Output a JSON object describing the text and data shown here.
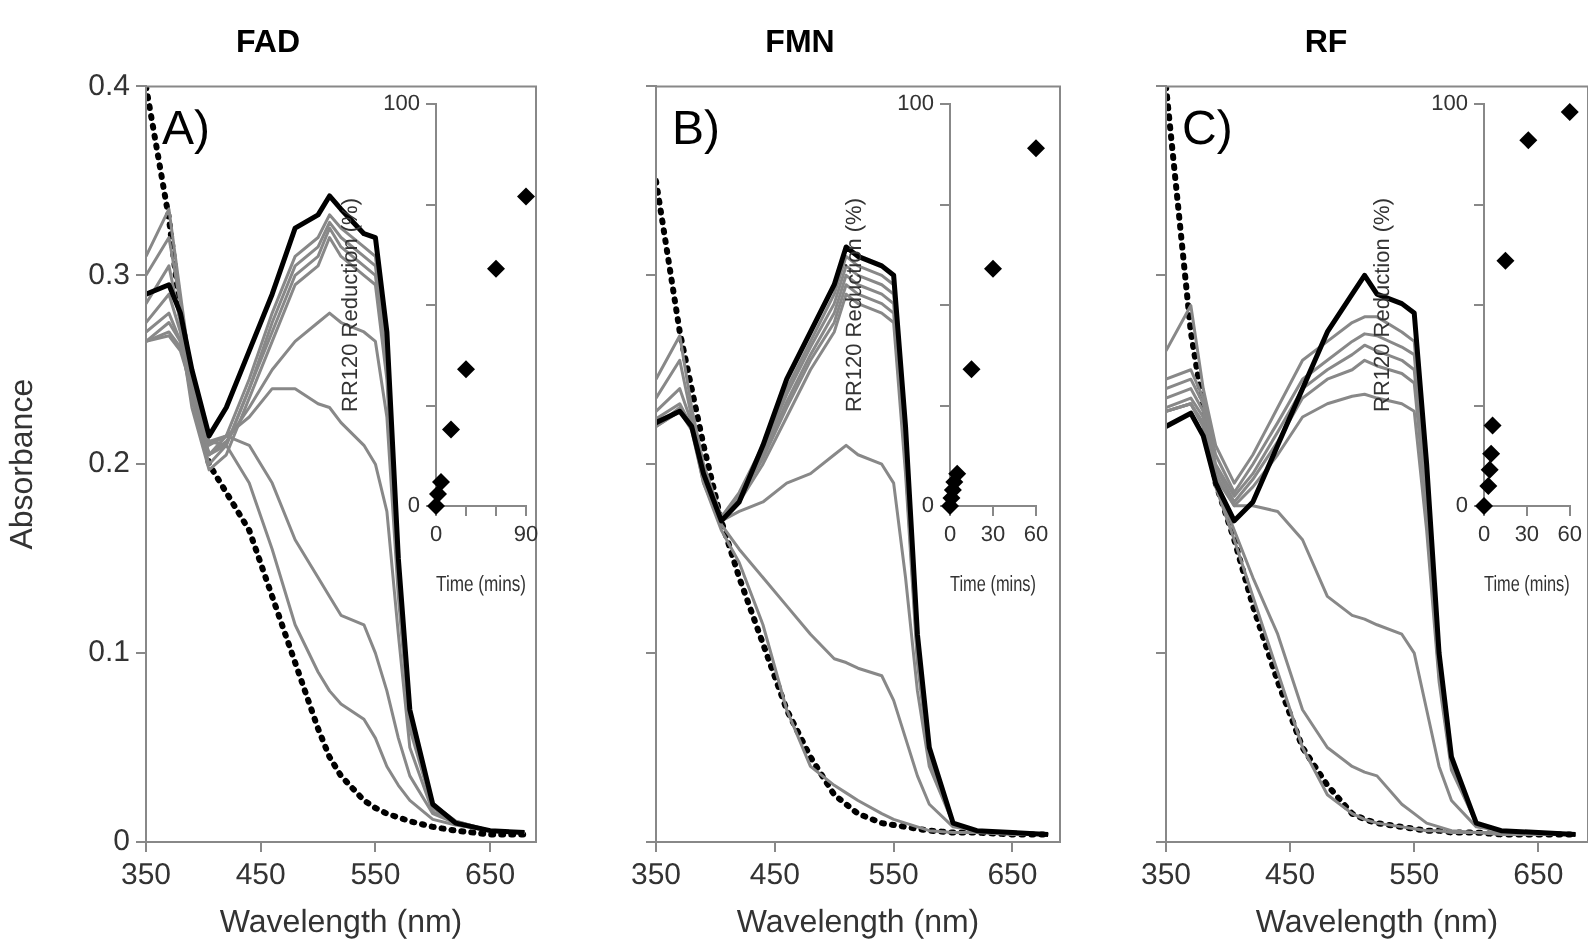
{
  "chart_data": [
    {
      "type": "line",
      "title": "FAD",
      "xlabel": "Wavelength (nm)",
      "ylabel": "Absorbance",
      "annotations": [
        "A)"
      ],
      "xlim": [
        350,
        690
      ],
      "xticks": [
        350,
        450,
        550,
        650
      ],
      "ylim": [
        0,
        0.4
      ],
      "yticks": [
        0,
        0.1,
        0.2,
        0.3,
        0.4
      ],
      "x": [
        350,
        370,
        380,
        390,
        405,
        420,
        440,
        460,
        480,
        500,
        510,
        520,
        540,
        550,
        560,
        570,
        580,
        600,
        620,
        650,
        680
      ],
      "series": [
        {
          "color": "#000000",
          "values": [
            0.29,
            0.295,
            0.28,
            0.25,
            0.215,
            0.23,
            0.26,
            0.29,
            0.325,
            0.332,
            0.342,
            0.335,
            0.322,
            0.32,
            0.27,
            0.15,
            0.07,
            0.02,
            0.01,
            0.006,
            0.005
          ]
        },
        {
          "color": "#888888",
          "values": [
            0.31,
            0.335,
            0.29,
            0.245,
            0.205,
            0.215,
            0.245,
            0.28,
            0.31,
            0.32,
            0.332,
            0.325,
            0.315,
            0.31,
            0.26,
            0.145,
            0.068,
            0.02,
            0.011,
            0.006,
            0.005
          ]
        },
        {
          "color": "#888888",
          "values": [
            0.3,
            0.32,
            0.285,
            0.24,
            0.205,
            0.21,
            0.24,
            0.275,
            0.305,
            0.315,
            0.328,
            0.32,
            0.31,
            0.305,
            0.255,
            0.14,
            0.065,
            0.02,
            0.011,
            0.006,
            0.005
          ]
        },
        {
          "color": "#888888",
          "values": [
            0.285,
            0.305,
            0.275,
            0.235,
            0.2,
            0.21,
            0.24,
            0.27,
            0.3,
            0.31,
            0.325,
            0.315,
            0.305,
            0.3,
            0.25,
            0.14,
            0.065,
            0.02,
            0.01,
            0.006,
            0.005
          ]
        },
        {
          "color": "#888888",
          "values": [
            0.275,
            0.29,
            0.27,
            0.23,
            0.197,
            0.205,
            0.235,
            0.265,
            0.295,
            0.305,
            0.32,
            0.31,
            0.3,
            0.295,
            0.245,
            0.135,
            0.062,
            0.019,
            0.01,
            0.006,
            0.005
          ]
        },
        {
          "color": "#888888",
          "values": [
            0.27,
            0.28,
            0.265,
            0.235,
            0.205,
            0.212,
            0.23,
            0.25,
            0.265,
            0.275,
            0.28,
            0.275,
            0.27,
            0.265,
            0.225,
            0.13,
            0.06,
            0.018,
            0.01,
            0.006,
            0.005
          ]
        },
        {
          "color": "#888888",
          "values": [
            0.265,
            0.275,
            0.265,
            0.24,
            0.21,
            0.215,
            0.225,
            0.24,
            0.24,
            0.232,
            0.23,
            0.222,
            0.21,
            0.2,
            0.175,
            0.11,
            0.05,
            0.016,
            0.01,
            0.006,
            0.005
          ]
        },
        {
          "color": "#888888",
          "values": [
            0.265,
            0.27,
            0.262,
            0.24,
            0.212,
            0.215,
            0.21,
            0.19,
            0.16,
            0.14,
            0.13,
            0.12,
            0.115,
            0.1,
            0.08,
            0.055,
            0.035,
            0.015,
            0.01,
            0.006,
            0.005
          ]
        },
        {
          "color": "#888888",
          "values": [
            0.265,
            0.268,
            0.26,
            0.24,
            0.212,
            0.21,
            0.19,
            0.155,
            0.115,
            0.09,
            0.08,
            0.073,
            0.065,
            0.055,
            0.04,
            0.03,
            0.022,
            0.012,
            0.009,
            0.006,
            0.005
          ]
        },
        {
          "color": "#000000",
          "line_style": "dotted",
          "values": [
            0.4,
            0.33,
            0.28,
            0.245,
            0.2,
            0.185,
            0.165,
            0.13,
            0.095,
            0.06,
            0.045,
            0.035,
            0.022,
            0.018,
            0.015,
            0.013,
            0.011,
            0.008,
            0.006,
            0.004,
            0.004
          ]
        }
      ]
    },
    {
      "type": "scatter",
      "xlabel": "Time (mins)",
      "ylabel": "RR120 Reduction (%)",
      "color": "#000000",
      "marker": "diamond",
      "xlim": [
        0,
        90
      ],
      "xticks": [
        0,
        {
          "value": 30,
          "label": null
        },
        {
          "value": 60,
          "label": null
        },
        90
      ],
      "ylim": [
        0,
        100
      ],
      "yticks": [
        0,
        {
          "value": 25,
          "label": null
        },
        {
          "value": 50,
          "label": null
        },
        {
          "value": 75,
          "label": null
        },
        100
      ],
      "x": [
        0,
        2,
        3,
        5,
        15,
        30,
        60,
        90
      ],
      "values": [
        0,
        3,
        null,
        6,
        19,
        34,
        59,
        77
      ]
    },
    {
      "type": "line",
      "title": "FMN",
      "xlabel": "Wavelength (nm)",
      "annotations": [
        "B)"
      ],
      "tick_labels": "x",
      "xlim": [
        350,
        690
      ],
      "xticks": [
        350,
        450,
        550,
        650
      ],
      "ylim": [
        0,
        0.4
      ],
      "yticks": [
        0,
        0.1,
        0.2,
        0.3,
        0.4
      ],
      "x": [
        350,
        370,
        380,
        390,
        405,
        420,
        440,
        460,
        480,
        500,
        510,
        520,
        540,
        550,
        560,
        570,
        580,
        600,
        620,
        650,
        680
      ],
      "series": [
        {
          "color": "#000000",
          "values": [
            0.222,
            0.228,
            0.22,
            0.195,
            0.17,
            0.18,
            0.21,
            0.245,
            0.27,
            0.295,
            0.315,
            0.31,
            0.305,
            0.3,
            0.22,
            0.11,
            0.05,
            0.01,
            0.006,
            0.005,
            0.004
          ]
        },
        {
          "color": "#888888",
          "values": [
            0.245,
            0.268,
            0.23,
            0.2,
            0.172,
            0.185,
            0.21,
            0.24,
            0.265,
            0.29,
            0.31,
            0.305,
            0.3,
            0.295,
            0.215,
            0.105,
            0.048,
            0.01,
            0.006,
            0.005,
            0.004
          ]
        },
        {
          "color": "#888888",
          "values": [
            0.235,
            0.255,
            0.225,
            0.197,
            0.172,
            0.183,
            0.207,
            0.237,
            0.262,
            0.285,
            0.305,
            0.3,
            0.295,
            0.29,
            0.21,
            0.1,
            0.046,
            0.01,
            0.006,
            0.005,
            0.004
          ]
        },
        {
          "color": "#888888",
          "values": [
            0.228,
            0.24,
            0.222,
            0.195,
            0.172,
            0.182,
            0.205,
            0.233,
            0.258,
            0.28,
            0.3,
            0.295,
            0.29,
            0.285,
            0.205,
            0.1,
            0.045,
            0.01,
            0.006,
            0.005,
            0.004
          ]
        },
        {
          "color": "#888888",
          "values": [
            0.224,
            0.232,
            0.22,
            0.195,
            0.172,
            0.182,
            0.203,
            0.23,
            0.255,
            0.275,
            0.295,
            0.29,
            0.285,
            0.28,
            0.2,
            0.098,
            0.044,
            0.01,
            0.006,
            0.005,
            0.004
          ]
        },
        {
          "color": "#888888",
          "values": [
            0.222,
            0.228,
            0.22,
            0.195,
            0.172,
            0.18,
            0.2,
            0.225,
            0.25,
            0.27,
            0.29,
            0.285,
            0.28,
            0.275,
            0.195,
            0.095,
            0.043,
            0.01,
            0.006,
            0.005,
            0.004
          ]
        },
        {
          "color": "#888888",
          "values": [
            0.22,
            0.23,
            0.22,
            0.195,
            0.17,
            0.175,
            0.18,
            0.19,
            0.195,
            0.205,
            0.21,
            0.205,
            0.2,
            0.19,
            0.14,
            0.08,
            0.04,
            0.01,
            0.006,
            0.005,
            0.004
          ]
        },
        {
          "color": "#888888",
          "values": [
            0.22,
            0.228,
            0.22,
            0.19,
            0.168,
            0.155,
            0.14,
            0.125,
            0.11,
            0.097,
            0.095,
            0.092,
            0.088,
            0.075,
            0.055,
            0.035,
            0.02,
            0.008,
            0.006,
            0.005,
            0.004
          ]
        },
        {
          "color": "#888888",
          "values": [
            0.22,
            0.228,
            0.218,
            0.19,
            0.165,
            0.148,
            0.115,
            0.07,
            0.04,
            0.03,
            0.026,
            0.022,
            0.015,
            0.012,
            0.01,
            0.008,
            0.006,
            0.005,
            0.005,
            0.004,
            0.004
          ]
        },
        {
          "color": "#000000",
          "line_style": "dotted",
          "values": [
            0.35,
            0.27,
            0.24,
            0.21,
            0.17,
            0.14,
            0.105,
            0.07,
            0.045,
            0.025,
            0.02,
            0.015,
            0.01,
            0.009,
            0.008,
            0.007,
            0.006,
            0.005,
            0.005,
            0.004,
            0.004
          ]
        }
      ]
    },
    {
      "type": "scatter",
      "xlabel": "Time (mins)",
      "ylabel": "RR120 Reduction (%)",
      "color": "#000000",
      "marker": "diamond",
      "xlim": [
        0,
        60
      ],
      "xticks": [
        0,
        30,
        60
      ],
      "ylim": [
        0,
        100
      ],
      "yticks": [
        0,
        {
          "value": 25,
          "label": null
        },
        {
          "value": 50,
          "label": null
        },
        {
          "value": 75,
          "label": null
        },
        100
      ],
      "x": [
        0,
        1,
        2,
        3,
        5,
        15,
        30,
        60
      ],
      "values": [
        0,
        2,
        4,
        6,
        8,
        34,
        59,
        89
      ]
    },
    {
      "type": "line",
      "title": "RF",
      "xlabel": "Wavelength (nm)",
      "annotations": [
        "C)"
      ],
      "tick_labels": "x",
      "xlim": [
        350,
        690
      ],
      "xticks": [
        350,
        450,
        550,
        650
      ],
      "ylim": [
        0,
        0.4
      ],
      "yticks": [
        0,
        0.1,
        0.2,
        0.3,
        0.4
      ],
      "x": [
        350,
        370,
        380,
        390,
        405,
        420,
        440,
        460,
        480,
        500,
        510,
        520,
        540,
        550,
        560,
        570,
        580,
        600,
        620,
        650,
        680
      ],
      "series": [
        {
          "color": "#000000",
          "values": [
            0.22,
            0.227,
            0.215,
            0.19,
            0.17,
            0.18,
            0.21,
            0.24,
            0.27,
            0.29,
            0.3,
            0.29,
            0.285,
            0.28,
            0.2,
            0.1,
            0.045,
            0.01,
            0.006,
            0.005,
            0.004
          ]
        },
        {
          "color": "#888888",
          "values": [
            0.26,
            0.284,
            0.24,
            0.21,
            0.19,
            0.205,
            0.23,
            0.255,
            0.265,
            0.275,
            0.278,
            0.278,
            0.27,
            0.265,
            0.19,
            0.095,
            0.043,
            0.01,
            0.006,
            0.005,
            0.004
          ]
        },
        {
          "color": "#888888",
          "values": [
            0.245,
            0.25,
            0.235,
            0.205,
            0.185,
            0.2,
            0.222,
            0.245,
            0.255,
            0.265,
            0.269,
            0.268,
            0.262,
            0.258,
            0.185,
            0.092,
            0.042,
            0.01,
            0.006,
            0.005,
            0.004
          ]
        },
        {
          "color": "#888888",
          "values": [
            0.24,
            0.245,
            0.232,
            0.2,
            0.183,
            0.195,
            0.217,
            0.24,
            0.25,
            0.258,
            0.263,
            0.26,
            0.255,
            0.25,
            0.18,
            0.09,
            0.041,
            0.01,
            0.006,
            0.005,
            0.004
          ]
        },
        {
          "color": "#888888",
          "values": [
            0.235,
            0.24,
            0.228,
            0.198,
            0.18,
            0.192,
            0.212,
            0.235,
            0.245,
            0.25,
            0.255,
            0.252,
            0.248,
            0.243,
            0.175,
            0.088,
            0.04,
            0.01,
            0.006,
            0.005,
            0.004
          ]
        },
        {
          "color": "#888888",
          "values": [
            0.23,
            0.235,
            0.225,
            0.195,
            0.178,
            0.188,
            0.205,
            0.225,
            0.232,
            0.236,
            0.237,
            0.235,
            0.232,
            0.228,
            0.165,
            0.085,
            0.038,
            0.01,
            0.006,
            0.005,
            0.004
          ]
        },
        {
          "color": "#888888",
          "values": [
            0.228,
            0.232,
            0.222,
            0.193,
            0.178,
            0.178,
            0.175,
            0.16,
            0.13,
            0.12,
            0.118,
            0.115,
            0.11,
            0.1,
            0.07,
            0.04,
            0.022,
            0.008,
            0.006,
            0.005,
            0.004
          ]
        },
        {
          "color": "#888888",
          "values": [
            0.228,
            0.232,
            0.22,
            0.19,
            0.165,
            0.14,
            0.11,
            0.07,
            0.05,
            0.04,
            0.037,
            0.035,
            0.02,
            0.015,
            0.01,
            0.008,
            0.006,
            0.005,
            0.005,
            0.004,
            0.004
          ]
        },
        {
          "color": "#888888",
          "values": [
            0.228,
            0.232,
            0.22,
            0.188,
            0.16,
            0.13,
            0.09,
            0.05,
            0.025,
            0.015,
            0.012,
            0.01,
            0.008,
            0.007,
            0.006,
            0.006,
            0.005,
            0.005,
            0.004,
            0.004,
            0.004
          ]
        },
        {
          "color": "#000000",
          "line_style": "dotted",
          "values": [
            0.4,
            0.27,
            0.23,
            0.19,
            0.16,
            0.125,
            0.085,
            0.05,
            0.03,
            0.015,
            0.012,
            0.01,
            0.008,
            0.007,
            0.006,
            0.006,
            0.005,
            0.005,
            0.004,
            0.004,
            0.004
          ]
        }
      ]
    },
    {
      "type": "scatter",
      "xlabel": "Time (mins)",
      "ylabel": "RR120 Reduction (%)",
      "color": "#000000",
      "marker": "diamond",
      "xlim": [
        0,
        60
      ],
      "xticks": [
        0,
        30,
        60
      ],
      "ylim": [
        0,
        100
      ],
      "yticks": [
        0,
        {
          "value": 25,
          "label": null
        },
        {
          "value": 50,
          "label": null
        },
        {
          "value": 75,
          "label": null
        },
        100
      ],
      "x": [
        0,
        3,
        4,
        5,
        6,
        15,
        31,
        60
      ],
      "values": [
        0,
        5,
        9,
        13,
        20,
        61,
        91,
        98
      ]
    }
  ]
}
